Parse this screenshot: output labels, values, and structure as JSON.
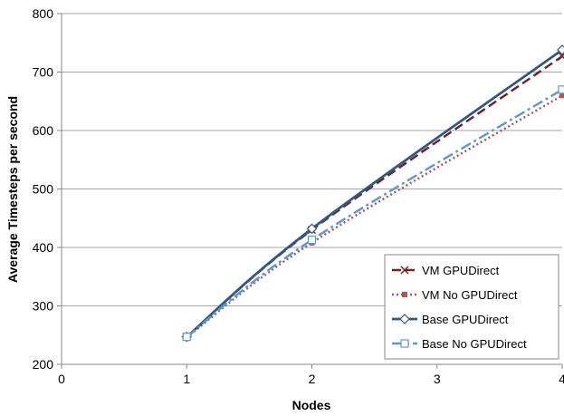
{
  "chart_data": {
    "type": "line",
    "xlabel": "Nodes",
    "ylabel": "Average Timesteps per second",
    "xlim": [
      0,
      4
    ],
    "ylim": [
      200,
      800
    ],
    "x_ticks": [
      "0",
      "1",
      "2",
      "3",
      "4"
    ],
    "y_ticks": [
      "200",
      "300",
      "400",
      "500",
      "600",
      "700",
      "800"
    ],
    "grid": "horizontal",
    "legend_position": "bottom-right",
    "x": [
      1,
      2,
      4
    ],
    "series": [
      {
        "name": "VM GPUDirect",
        "values": [
          247,
          430,
          727
        ],
        "color": "#7B2020",
        "dash": "10,5",
        "marker": "x"
      },
      {
        "name": "VM No GPUDirect",
        "values": [
          246,
          408,
          660
        ],
        "color": "#C0504D",
        "dash": "2,3",
        "marker": "square-small"
      },
      {
        "name": "Base GPUDirect",
        "values": [
          247,
          432,
          738
        ],
        "color": "#2E5A88",
        "dash": "",
        "marker": "diamond"
      },
      {
        "name": "Base No GPUDirect",
        "values": [
          247,
          413,
          670
        ],
        "color": "#5B9BD5",
        "dash": "12,4,3,4",
        "marker": "square"
      }
    ]
  }
}
